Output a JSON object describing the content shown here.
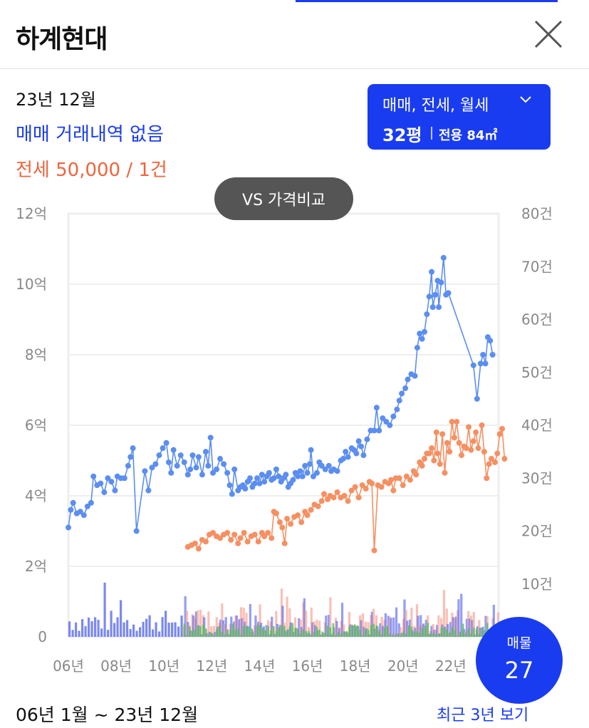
{
  "header": {
    "title": "하계현대",
    "close_icon": "close-icon"
  },
  "summary": {
    "date": "23년 12월",
    "sale_text": "매매 거래내역 없음",
    "jeonse_text": "전세 50,000 / 1건"
  },
  "filter": {
    "types": "매매, 전세, 월세",
    "chevron_icon": "chevron-down-icon",
    "area": "32평",
    "exclusive": "전용 84㎡"
  },
  "compare_button": "VS 가격비교",
  "colors": {
    "accent": "#1a3cf0",
    "sale_line": "#5b8ef0",
    "jeonse_line": "#f59062",
    "sale_bar": "#5a6af0",
    "jeonse_bar": "#f7a597",
    "monthly_bar": "#50c050"
  },
  "chart_data": {
    "type": "line",
    "x_range": [
      2006.0,
      2024.0
    ],
    "x_ticks": [
      "06년",
      "08년",
      "10년",
      "12년",
      "14년",
      "16년",
      "18년",
      "20년",
      "22년"
    ],
    "x_tick_values": [
      2006,
      2008,
      2010,
      2012,
      2014,
      2016,
      2018,
      2020,
      2022
    ],
    "y_left": {
      "label": "",
      "ticks": [
        "0",
        "2억",
        "4억",
        "6억",
        "8억",
        "10억",
        "12억"
      ],
      "range": [
        0,
        12
      ]
    },
    "y_right": {
      "label": "",
      "ticks": [
        "10건",
        "20건",
        "30건",
        "40건",
        "50건",
        "60건",
        "70건",
        "80건"
      ],
      "range": [
        0,
        80
      ]
    },
    "grid": true,
    "series": [
      {
        "name": "매매",
        "axis": "left",
        "points": [
          [
            2006.0,
            3.1
          ],
          [
            2006.1,
            3.6
          ],
          [
            2006.2,
            3.8
          ],
          [
            2006.35,
            3.5
          ],
          [
            2006.5,
            3.55
          ],
          [
            2006.65,
            3.45
          ],
          [
            2006.8,
            3.7
          ],
          [
            2006.95,
            3.8
          ],
          [
            2007.05,
            4.55
          ],
          [
            2007.2,
            4.3
          ],
          [
            2007.35,
            4.35
          ],
          [
            2007.5,
            4.1
          ],
          [
            2007.65,
            4.5
          ],
          [
            2007.8,
            4.4
          ],
          [
            2007.95,
            4.15
          ],
          [
            2008.05,
            4.55
          ],
          [
            2008.2,
            4.5
          ],
          [
            2008.35,
            4.5
          ],
          [
            2008.5,
            4.85
          ],
          [
            2008.6,
            5.1
          ],
          [
            2008.7,
            5.35
          ],
          [
            2008.85,
            3.0
          ],
          [
            2009.2,
            4.7
          ],
          [
            2009.35,
            4.15
          ],
          [
            2009.5,
            4.8
          ],
          [
            2009.65,
            4.9
          ],
          [
            2009.8,
            5.15
          ],
          [
            2009.95,
            5.35
          ],
          [
            2010.1,
            5.5
          ],
          [
            2010.2,
            4.95
          ],
          [
            2010.3,
            4.65
          ],
          [
            2010.4,
            5.3
          ],
          [
            2010.55,
            4.85
          ],
          [
            2010.7,
            5.15
          ],
          [
            2010.85,
            4.95
          ],
          [
            2011.0,
            4.6
          ],
          [
            2011.1,
            4.75
          ],
          [
            2011.2,
            5.15
          ],
          [
            2011.35,
            4.8
          ],
          [
            2011.45,
            5.1
          ],
          [
            2011.6,
            4.6
          ],
          [
            2011.75,
            5.25
          ],
          [
            2011.85,
            4.85
          ],
          [
            2011.95,
            5.65
          ],
          [
            2012.05,
            4.65
          ],
          [
            2012.2,
            4.75
          ],
          [
            2012.35,
            5.05
          ],
          [
            2012.5,
            4.9
          ],
          [
            2012.65,
            4.65
          ],
          [
            2012.75,
            4.3
          ],
          [
            2012.85,
            4.05
          ],
          [
            2012.95,
            4.75
          ],
          [
            2013.1,
            4.15
          ],
          [
            2013.2,
            4.25
          ],
          [
            2013.3,
            4.3
          ],
          [
            2013.4,
            4.2
          ],
          [
            2013.5,
            4.4
          ],
          [
            2013.6,
            4.5
          ],
          [
            2013.7,
            4.25
          ],
          [
            2013.8,
            4.35
          ],
          [
            2013.9,
            4.5
          ],
          [
            2014.0,
            4.35
          ],
          [
            2014.1,
            4.6
          ],
          [
            2014.2,
            4.4
          ],
          [
            2014.3,
            4.55
          ],
          [
            2014.4,
            4.65
          ],
          [
            2014.5,
            4.45
          ],
          [
            2014.6,
            4.5
          ],
          [
            2014.7,
            4.75
          ],
          [
            2014.8,
            4.55
          ],
          [
            2014.9,
            4.4
          ],
          [
            2015.0,
            4.5
          ],
          [
            2015.1,
            4.6
          ],
          [
            2015.2,
            4.25
          ],
          [
            2015.3,
            4.35
          ],
          [
            2015.4,
            4.45
          ],
          [
            2015.5,
            4.65
          ],
          [
            2015.6,
            4.55
          ],
          [
            2015.7,
            4.7
          ],
          [
            2015.8,
            4.55
          ],
          [
            2015.9,
            4.85
          ],
          [
            2016.0,
            4.65
          ],
          [
            2016.1,
            4.9
          ],
          [
            2016.15,
            5.3
          ],
          [
            2016.25,
            4.55
          ],
          [
            2016.4,
            4.65
          ],
          [
            2016.5,
            4.95
          ],
          [
            2016.6,
            4.85
          ],
          [
            2016.75,
            4.75
          ],
          [
            2016.9,
            4.85
          ],
          [
            2017.0,
            4.7
          ],
          [
            2017.1,
            4.75
          ],
          [
            2017.25,
            4.7
          ],
          [
            2017.4,
            5.0
          ],
          [
            2017.5,
            5.05
          ],
          [
            2017.6,
            5.25
          ],
          [
            2017.7,
            5.1
          ],
          [
            2017.85,
            5.35
          ],
          [
            2017.95,
            5.3
          ],
          [
            2018.05,
            5.2
          ],
          [
            2018.15,
            5.55
          ],
          [
            2018.25,
            5.4
          ],
          [
            2018.35,
            5.15
          ],
          [
            2018.5,
            5.6
          ],
          [
            2018.65,
            5.85
          ],
          [
            2018.8,
            5.85
          ],
          [
            2018.9,
            6.5
          ],
          [
            2019.0,
            5.85
          ],
          [
            2019.15,
            6.2
          ],
          [
            2019.3,
            6.1
          ],
          [
            2019.45,
            6.0
          ],
          [
            2019.6,
            6.25
          ],
          [
            2019.75,
            6.45
          ],
          [
            2019.85,
            6.7
          ],
          [
            2019.95,
            6.9
          ],
          [
            2020.1,
            7.05
          ],
          [
            2020.2,
            7.3
          ],
          [
            2020.35,
            7.45
          ],
          [
            2020.5,
            7.4
          ],
          [
            2020.6,
            8.2
          ],
          [
            2020.7,
            8.6
          ],
          [
            2020.8,
            8.45
          ],
          [
            2020.9,
            8.65
          ],
          [
            2021.0,
            9.15
          ],
          [
            2021.1,
            9.65
          ],
          [
            2021.2,
            10.35
          ],
          [
            2021.25,
            9.35
          ],
          [
            2021.35,
            9.7
          ],
          [
            2021.45,
            10.1
          ],
          [
            2021.5,
            9.35
          ],
          [
            2021.6,
            10.05
          ],
          [
            2021.7,
            10.75
          ],
          [
            2021.8,
            9.7
          ],
          [
            2021.9,
            9.75
          ],
          [
            2022.95,
            7.7
          ],
          [
            2023.1,
            6.75
          ],
          [
            2023.25,
            7.75
          ],
          [
            2023.35,
            8.0
          ],
          [
            2023.45,
            7.75
          ],
          [
            2023.55,
            8.5
          ],
          [
            2023.65,
            8.4
          ],
          [
            2023.75,
            8.0
          ]
        ]
      },
      {
        "name": "전세",
        "axis": "left",
        "points": [
          [
            2011.0,
            2.55
          ],
          [
            2011.15,
            2.6
          ],
          [
            2011.3,
            2.65
          ],
          [
            2011.45,
            2.5
          ],
          [
            2011.6,
            2.75
          ],
          [
            2011.75,
            2.7
          ],
          [
            2011.9,
            2.9
          ],
          [
            2012.05,
            2.95
          ],
          [
            2012.2,
            2.85
          ],
          [
            2012.35,
            2.8
          ],
          [
            2012.5,
            2.9
          ],
          [
            2012.65,
            2.95
          ],
          [
            2012.8,
            2.75
          ],
          [
            2012.95,
            2.9
          ],
          [
            2013.1,
            2.65
          ],
          [
            2013.2,
            2.8
          ],
          [
            2013.35,
            2.95
          ],
          [
            2013.5,
            2.7
          ],
          [
            2013.65,
            2.85
          ],
          [
            2013.8,
            2.9
          ],
          [
            2013.95,
            2.7
          ],
          [
            2014.1,
            2.95
          ],
          [
            2014.2,
            2.85
          ],
          [
            2014.35,
            2.95
          ],
          [
            2014.5,
            2.8
          ],
          [
            2014.6,
            3.55
          ],
          [
            2014.7,
            3.5
          ],
          [
            2014.85,
            3.25
          ],
          [
            2014.95,
            3.1
          ],
          [
            2015.05,
            2.65
          ],
          [
            2015.15,
            3.35
          ],
          [
            2015.3,
            3.2
          ],
          [
            2015.45,
            3.4
          ],
          [
            2015.6,
            3.45
          ],
          [
            2015.75,
            3.25
          ],
          [
            2015.9,
            3.55
          ],
          [
            2016.0,
            3.45
          ],
          [
            2016.15,
            3.6
          ],
          [
            2016.3,
            3.75
          ],
          [
            2016.45,
            3.7
          ],
          [
            2016.6,
            3.85
          ],
          [
            2016.7,
            4.05
          ],
          [
            2016.85,
            3.9
          ],
          [
            2016.95,
            4.0
          ],
          [
            2017.1,
            3.95
          ],
          [
            2017.25,
            4.1
          ],
          [
            2017.4,
            3.95
          ],
          [
            2017.55,
            4.0
          ],
          [
            2017.7,
            3.85
          ],
          [
            2017.85,
            4.15
          ],
          [
            2018.0,
            4.25
          ],
          [
            2018.15,
            3.95
          ],
          [
            2018.3,
            4.3
          ],
          [
            2018.45,
            4.2
          ],
          [
            2018.6,
            4.4
          ],
          [
            2018.7,
            4.35
          ],
          [
            2018.8,
            2.45
          ],
          [
            2018.95,
            4.3
          ],
          [
            2019.1,
            4.25
          ],
          [
            2019.25,
            4.4
          ],
          [
            2019.4,
            4.35
          ],
          [
            2019.5,
            4.45
          ],
          [
            2019.6,
            4.15
          ],
          [
            2019.7,
            4.5
          ],
          [
            2019.85,
            4.5
          ],
          [
            2020.0,
            4.3
          ],
          [
            2020.15,
            4.55
          ],
          [
            2020.3,
            4.45
          ],
          [
            2020.45,
            4.7
          ],
          [
            2020.55,
            4.6
          ],
          [
            2020.7,
            4.95
          ],
          [
            2020.8,
            4.85
          ],
          [
            2020.9,
            5.05
          ],
          [
            2021.0,
            5.2
          ],
          [
            2021.1,
            5.2
          ],
          [
            2021.2,
            5.35
          ],
          [
            2021.3,
            5.0
          ],
          [
            2021.4,
            5.8
          ],
          [
            2021.45,
            5.2
          ],
          [
            2021.55,
            4.9
          ],
          [
            2021.65,
            5.75
          ],
          [
            2021.75,
            4.65
          ],
          [
            2021.85,
            5.5
          ],
          [
            2021.95,
            5.25
          ],
          [
            2022.05,
            6.1
          ],
          [
            2022.15,
            5.65
          ],
          [
            2022.25,
            6.1
          ],
          [
            2022.35,
            5.5
          ],
          [
            2022.45,
            5.15
          ],
          [
            2022.55,
            5.4
          ],
          [
            2022.65,
            5.35
          ],
          [
            2022.75,
            5.95
          ],
          [
            2022.85,
            5.3
          ],
          [
            2022.95,
            5.55
          ],
          [
            2023.05,
            5.8
          ],
          [
            2023.15,
            5.35
          ],
          [
            2023.3,
            6.0
          ],
          [
            2023.4,
            5.25
          ],
          [
            2023.5,
            4.5
          ],
          [
            2023.6,
            4.9
          ],
          [
            2023.7,
            5.05
          ],
          [
            2023.85,
            4.95
          ],
          [
            2023.95,
            5.2
          ],
          [
            2024.05,
            5.75
          ],
          [
            2024.15,
            5.9
          ],
          [
            2024.25,
            5.05
          ]
        ]
      }
    ]
  },
  "listing_count": {
    "label": "매물",
    "value": "27"
  },
  "footer": {
    "range": "06년 1월 ~ 23년 12월",
    "recent_link": "최근 3년 보기"
  }
}
